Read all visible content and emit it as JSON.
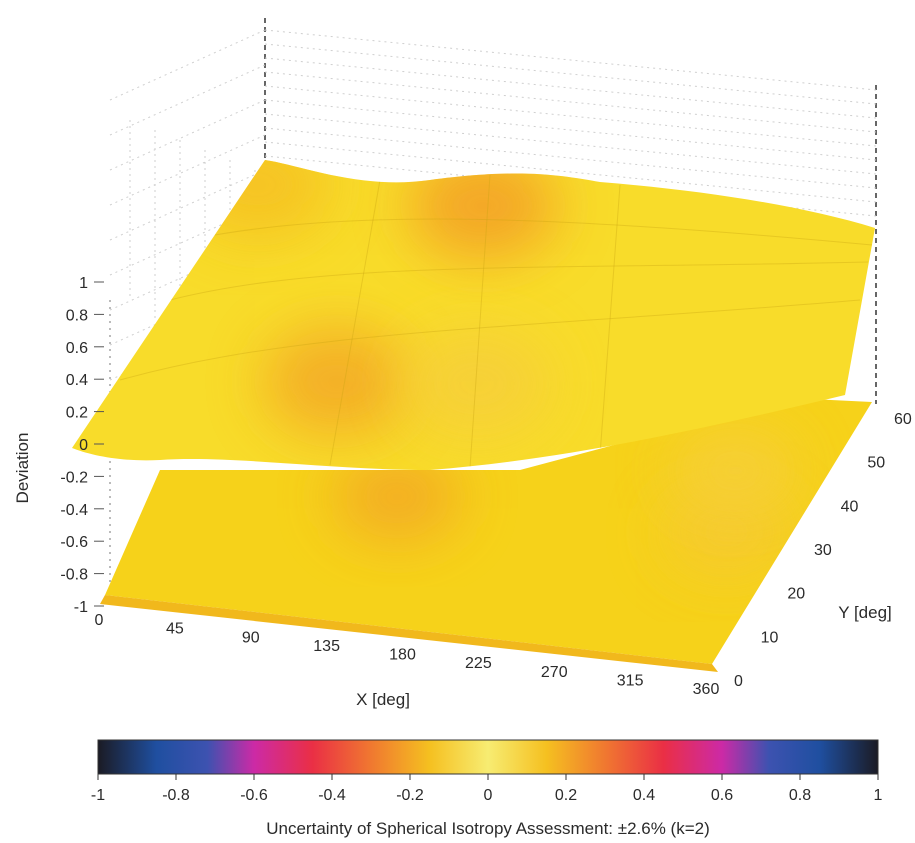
{
  "chart_data": {
    "type": "heatmap",
    "surface": "3d",
    "xlabel": "X [deg]",
    "ylabel": "Y [deg]",
    "zlabel": "Deviation",
    "x_ticks": [
      "0",
      "45",
      "90",
      "135",
      "180",
      "225",
      "270",
      "315",
      "360"
    ],
    "y_ticks": [
      "0",
      "10",
      "20",
      "30",
      "40",
      "50",
      "60"
    ],
    "z_ticks": [
      "1",
      "0.8",
      "0.6",
      "0.4",
      "0.2",
      "0",
      "-0.2",
      "-0.4",
      "-0.6",
      "-0.8",
      "-1"
    ],
    "xlim": [
      0,
      360
    ],
    "ylim": [
      0,
      60
    ],
    "zlim": [
      -1,
      1
    ],
    "grid": true,
    "colorbar": {
      "ticks": [
        "-1",
        "-0.8",
        "-0.6",
        "-0.4",
        "-0.2",
        "0",
        "0.2",
        "0.4",
        "0.6",
        "0.8",
        "1"
      ],
      "range": [
        -1,
        1
      ],
      "caption": "Uncertainty of Spherical Isotropy Assessment: ±2.6% (k=2)",
      "stops": [
        {
          "v": -1.0,
          "color": "#1b1b24"
        },
        {
          "v": -0.85,
          "color": "#1f4fa0"
        },
        {
          "v": -0.72,
          "color": "#3d52b0"
        },
        {
          "v": -0.6,
          "color": "#cc2aa6"
        },
        {
          "v": -0.45,
          "color": "#ea2f45"
        },
        {
          "v": -0.3,
          "color": "#f07830"
        },
        {
          "v": -0.15,
          "color": "#f5c020"
        },
        {
          "v": 0.0,
          "color": "#f7ec72"
        },
        {
          "v": 0.15,
          "color": "#f5c020"
        },
        {
          "v": 0.3,
          "color": "#f07830"
        },
        {
          "v": 0.45,
          "color": "#ea2f45"
        },
        {
          "v": 0.6,
          "color": "#cc2aa6"
        },
        {
          "v": 0.72,
          "color": "#3d52b0"
        },
        {
          "v": 0.85,
          "color": "#1f4fa0"
        },
        {
          "v": 1.0,
          "color": "#1b1b24"
        }
      ]
    },
    "upper_surface_blobs": [
      {
        "x": 135,
        "y": 55,
        "value": 0.22
      },
      {
        "x": 110,
        "y": 12,
        "value": 0.2
      },
      {
        "x": 5,
        "y": 55,
        "value": 0.15
      },
      {
        "x": 180,
        "y": 10,
        "value": 0.1
      }
    ],
    "lower_surface_blobs": [
      {
        "x": 100,
        "y": 40,
        "value": 0.2
      },
      {
        "x": 320,
        "y": 30,
        "value": 0.12
      },
      {
        "x": 300,
        "y": 45,
        "value": 0.1
      }
    ]
  }
}
